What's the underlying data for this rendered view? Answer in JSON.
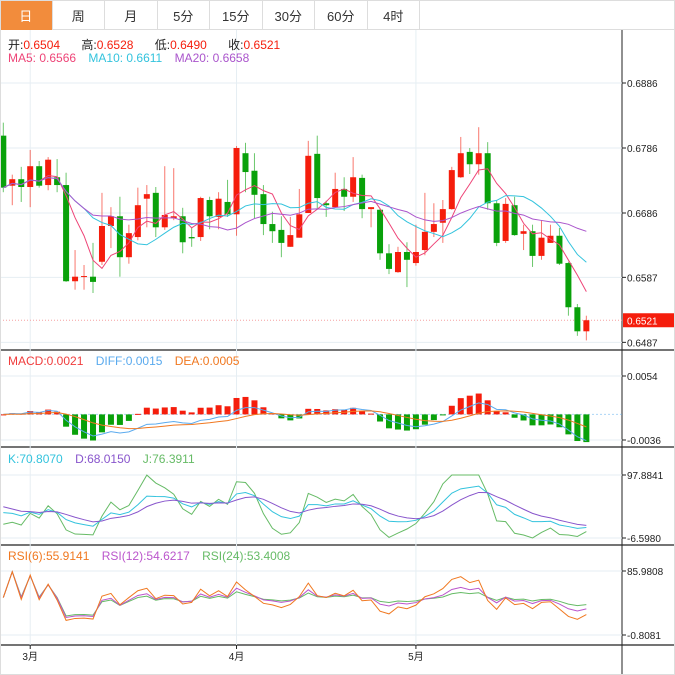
{
  "tabs": [
    "日",
    "周",
    "月",
    "5分",
    "15分",
    "30分",
    "60分",
    "4时"
  ],
  "active_tab": 0,
  "ohlc_info": {
    "open_label": "开:",
    "open": "0.6504",
    "high_label": "高:",
    "high": "0.6528",
    "low_label": "低:",
    "low": "0.6490",
    "close_label": "收:",
    "close": "0.6521"
  },
  "ma_info": {
    "ma5": "MA5: 0.6566",
    "ma10": "MA10: 0.6611",
    "ma20": "MA20: 0.6658"
  },
  "macd_info": {
    "macd": "MACD:0.0021",
    "diff": "DIFF:0.0015",
    "dea": "DEA:0.0005"
  },
  "kdj_info": {
    "k": "K:70.8070",
    "d": "D:68.0150",
    "j": "J:76.3911"
  },
  "rsi_info": {
    "rsi6": "RSI(6):55.9141",
    "rsi12": "RSI(12):54.6217",
    "rsi24": "RSI(24):53.4008"
  },
  "colors": {
    "up": "#f51d0c",
    "down": "#09a10a",
    "ma5": "#ee4477",
    "ma10": "#33c3dd",
    "ma20": "#aa55cc",
    "macd": "#f03c3c",
    "diff": "#5aaaee",
    "dea": "#f07820",
    "k": "#33c3dd",
    "d": "#8855cc",
    "j": "#66bb66",
    "rsi6": "#f07820",
    "rsi12": "#bb55cc",
    "rsi24": "#66bb66",
    "tab_active": "#f28c3c"
  },
  "chart_data": [
    {
      "type": "candlestick",
      "title": "main",
      "price_ticks": [
        "0.6886",
        "0.6786",
        "0.6686",
        "0.6587",
        "0.6487"
      ],
      "ylim": [
        0.6487,
        0.6886
      ],
      "last_price": "0.6521",
      "x_ticks": [
        {
          "label": "3月",
          "index": 3
        },
        {
          "label": "4月",
          "index": 26
        },
        {
          "label": "5月",
          "index": 46
        }
      ],
      "ohlc": [
        [
          0.6805,
          0.6825,
          0.6718,
          0.6725
        ],
        [
          0.6728,
          0.6745,
          0.6698,
          0.6738
        ],
        [
          0.6738,
          0.6757,
          0.6703,
          0.6726
        ],
        [
          0.6726,
          0.6783,
          0.6695,
          0.6758
        ],
        [
          0.6758,
          0.6766,
          0.6725,
          0.6728
        ],
        [
          0.6729,
          0.6772,
          0.6721,
          0.6768
        ],
        [
          0.6741,
          0.6769,
          0.6718,
          0.6729
        ],
        [
          0.6729,
          0.6748,
          0.658,
          0.6581
        ],
        [
          0.6581,
          0.6629,
          0.6568,
          0.6588
        ],
        [
          0.6588,
          0.6606,
          0.6568,
          0.6589
        ],
        [
          0.6588,
          0.664,
          0.6563,
          0.658
        ],
        [
          0.6611,
          0.6717,
          0.6606,
          0.6666
        ],
        [
          0.6666,
          0.6695,
          0.6632,
          0.6681
        ],
        [
          0.6681,
          0.6711,
          0.6588,
          0.6618
        ],
        [
          0.6618,
          0.6668,
          0.6608,
          0.6655
        ],
        [
          0.6649,
          0.6725,
          0.6644,
          0.6698
        ],
        [
          0.6708,
          0.6729,
          0.6664,
          0.6715
        ],
        [
          0.6717,
          0.6726,
          0.6649,
          0.6664
        ],
        [
          0.6664,
          0.6758,
          0.666,
          0.6683
        ],
        [
          0.6678,
          0.6755,
          0.6675,
          0.6681
        ],
        [
          0.6681,
          0.6694,
          0.6624,
          0.6641
        ],
        [
          0.6649,
          0.6664,
          0.6634,
          0.6647
        ],
        [
          0.6649,
          0.6711,
          0.6643,
          0.6709
        ],
        [
          0.6706,
          0.6711,
          0.6661,
          0.6681
        ],
        [
          0.668,
          0.6718,
          0.6661,
          0.6708
        ],
        [
          0.6703,
          0.6737,
          0.668,
          0.6684
        ],
        [
          0.6684,
          0.6789,
          0.6651,
          0.6786
        ],
        [
          0.6778,
          0.6794,
          0.6718,
          0.6749
        ],
        [
          0.6751,
          0.6778,
          0.6678,
          0.6714
        ],
        [
          0.6715,
          0.6729,
          0.6652,
          0.6669
        ],
        [
          0.6669,
          0.6688,
          0.664,
          0.6658
        ],
        [
          0.666,
          0.6681,
          0.6618,
          0.664
        ],
        [
          0.6634,
          0.668,
          0.6634,
          0.6652
        ],
        [
          0.6648,
          0.6723,
          0.6648,
          0.6684
        ],
        [
          0.6686,
          0.6797,
          0.6686,
          0.6774
        ],
        [
          0.6777,
          0.6805,
          0.6691,
          0.6709
        ],
        [
          0.6701,
          0.6705,
          0.668,
          0.6698
        ],
        [
          0.6695,
          0.6748,
          0.6695,
          0.6723
        ],
        [
          0.6723,
          0.6741,
          0.6689,
          0.6711
        ],
        [
          0.6711,
          0.6772,
          0.6703,
          0.6741
        ],
        [
          0.674,
          0.6745,
          0.6678,
          0.6692
        ],
        [
          0.6692,
          0.6695,
          0.6664,
          0.6695
        ],
        [
          0.6691,
          0.6692,
          0.6614,
          0.6624
        ],
        [
          0.6624,
          0.6638,
          0.6592,
          0.66
        ],
        [
          0.6595,
          0.6634,
          0.6594,
          0.6626
        ],
        [
          0.6626,
          0.6641,
          0.6572,
          0.6614
        ],
        [
          0.6609,
          0.6668,
          0.6605,
          0.6626
        ],
        [
          0.6629,
          0.6717,
          0.6621,
          0.6657
        ],
        [
          0.6657,
          0.6701,
          0.6649,
          0.6669
        ],
        [
          0.6671,
          0.6706,
          0.664,
          0.6692
        ],
        [
          0.6692,
          0.6757,
          0.6691,
          0.6752
        ],
        [
          0.6741,
          0.6803,
          0.674,
          0.6778
        ],
        [
          0.678,
          0.6786,
          0.6746,
          0.6761
        ],
        [
          0.6761,
          0.6818,
          0.6745,
          0.6778
        ],
        [
          0.6778,
          0.6795,
          0.6691,
          0.6701
        ],
        [
          0.6701,
          0.6706,
          0.6635,
          0.664
        ],
        [
          0.6643,
          0.6709,
          0.664,
          0.67
        ],
        [
          0.6698,
          0.6711,
          0.6651,
          0.6652
        ],
        [
          0.6654,
          0.6668,
          0.6629,
          0.6658
        ],
        [
          0.6658,
          0.6668,
          0.6603,
          0.662
        ],
        [
          0.662,
          0.6675,
          0.6614,
          0.6648
        ],
        [
          0.664,
          0.6668,
          0.664,
          0.6651
        ],
        [
          0.6651,
          0.6663,
          0.6606,
          0.6608
        ],
        [
          0.6609,
          0.6611,
          0.6528,
          0.6541
        ],
        [
          0.6541,
          0.6546,
          0.6497,
          0.6504
        ],
        [
          0.6504,
          0.6528,
          0.649,
          0.6521
        ]
      ]
    },
    {
      "type": "bar+line",
      "title": "MACD",
      "ticks": [
        "0.0054",
        "-0.0036"
      ],
      "ylim": [
        -0.0036,
        0.0054
      ]
    },
    {
      "type": "line",
      "title": "KDJ",
      "ticks": [
        "97.8841",
        "-6.5980"
      ],
      "ylim": [
        -6.598,
        97.8841
      ]
    },
    {
      "type": "line",
      "title": "RSI",
      "ticks": [
        "85.9808",
        "-0.8081"
      ],
      "ylim": [
        -0.8081,
        85.9808
      ]
    }
  ]
}
